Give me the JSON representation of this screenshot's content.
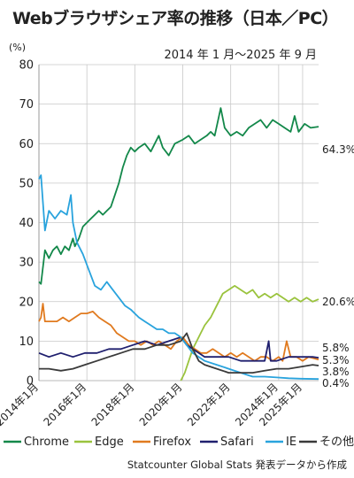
{
  "title": "Webブラウザシェア率の推移（日本／PC）",
  "source": "Statcounter Global Stats 発表データから作成",
  "chart_data": {
    "type": "line",
    "title": "Webブラウザシェア率の推移（日本／PC）",
    "subtitle": "2014 年 1 月～2025 年 9 月",
    "ylabel": "(%)",
    "xlabel": "",
    "ylim": [
      0,
      80
    ],
    "y_ticks": [
      0,
      10,
      20,
      30,
      40,
      50,
      60,
      70,
      80
    ],
    "x_range": [
      "2014-01",
      "2025-09"
    ],
    "x_ticks": [
      {
        "date": "2014-01",
        "label": "2014年1月"
      },
      {
        "date": "2016-01",
        "label": "2016年1月"
      },
      {
        "date": "2018-01",
        "label": "2018年1月"
      },
      {
        "date": "2020-01",
        "label": "2020年1月"
      },
      {
        "date": "2022-01",
        "label": "2022年1月"
      },
      {
        "date": "2024-01",
        "label": "2024年1月"
      },
      {
        "date": "2025-01",
        "label": "2025年1月"
      }
    ],
    "grid": true,
    "legend_position": "bottom",
    "series": [
      {
        "name": "Chrome",
        "color": "#13884a",
        "end_label": "64.3%",
        "points": [
          [
            "2014-01",
            25
          ],
          [
            "2014-02",
            24.5
          ],
          [
            "2014-04",
            33
          ],
          [
            "2014-06",
            31
          ],
          [
            "2014-08",
            33
          ],
          [
            "2014-10",
            34
          ],
          [
            "2014-12",
            32
          ],
          [
            "2015-02",
            34
          ],
          [
            "2015-04",
            33
          ],
          [
            "2015-06",
            36
          ],
          [
            "2015-07",
            34
          ],
          [
            "2015-09",
            36
          ],
          [
            "2015-11",
            39
          ],
          [
            "2016-01",
            40
          ],
          [
            "2016-03",
            41
          ],
          [
            "2016-05",
            42
          ],
          [
            "2016-07",
            43
          ],
          [
            "2016-09",
            42
          ],
          [
            "2016-11",
            43
          ],
          [
            "2017-01",
            44
          ],
          [
            "2017-03",
            47
          ],
          [
            "2017-05",
            50
          ],
          [
            "2017-07",
            54
          ],
          [
            "2017-09",
            57
          ],
          [
            "2017-11",
            59
          ],
          [
            "2018-01",
            58
          ],
          [
            "2018-03",
            59
          ],
          [
            "2018-06",
            60
          ],
          [
            "2018-09",
            58
          ],
          [
            "2019-01",
            62
          ],
          [
            "2019-03",
            59
          ],
          [
            "2019-06",
            57
          ],
          [
            "2019-09",
            60
          ],
          [
            "2020-01",
            61
          ],
          [
            "2020-04",
            62
          ],
          [
            "2020-07",
            60
          ],
          [
            "2020-10",
            61
          ],
          [
            "2021-01",
            62
          ],
          [
            "2021-03",
            63
          ],
          [
            "2021-05",
            62
          ],
          [
            "2021-08",
            69
          ],
          [
            "2021-10",
            64
          ],
          [
            "2022-01",
            62
          ],
          [
            "2022-04",
            63
          ],
          [
            "2022-07",
            62
          ],
          [
            "2022-10",
            64
          ],
          [
            "2023-01",
            65
          ],
          [
            "2023-04",
            66
          ],
          [
            "2023-07",
            64
          ],
          [
            "2023-10",
            66
          ],
          [
            "2024-01",
            65
          ],
          [
            "2024-04",
            64
          ],
          [
            "2024-07",
            63
          ],
          [
            "2024-09",
            67
          ],
          [
            "2024-11",
            63
          ],
          [
            "2025-02",
            65
          ],
          [
            "2025-05",
            64
          ],
          [
            "2025-09",
            64.3
          ]
        ]
      },
      {
        "name": "Edge",
        "color": "#9ac33d",
        "end_label": "20.6%",
        "points": [
          [
            "2019-12",
            0
          ],
          [
            "2020-02",
            2
          ],
          [
            "2020-04",
            5
          ],
          [
            "2020-06",
            8
          ],
          [
            "2020-08",
            10
          ],
          [
            "2020-10",
            12
          ],
          [
            "2020-12",
            14
          ],
          [
            "2021-03",
            16
          ],
          [
            "2021-06",
            19
          ],
          [
            "2021-09",
            22
          ],
          [
            "2021-12",
            23
          ],
          [
            "2022-03",
            24
          ],
          [
            "2022-06",
            23
          ],
          [
            "2022-09",
            22
          ],
          [
            "2022-12",
            23
          ],
          [
            "2023-03",
            21
          ],
          [
            "2023-06",
            22
          ],
          [
            "2023-09",
            21
          ],
          [
            "2023-12",
            22
          ],
          [
            "2024-03",
            21
          ],
          [
            "2024-06",
            20
          ],
          [
            "2024-09",
            21
          ],
          [
            "2024-12",
            20
          ],
          [
            "2025-03",
            21
          ],
          [
            "2025-06",
            20
          ],
          [
            "2025-09",
            20.6
          ]
        ]
      },
      {
        "name": "Firefox",
        "color": "#e07a1f",
        "end_label": "5.3%",
        "points": [
          [
            "2014-01",
            15
          ],
          [
            "2014-02",
            16
          ],
          [
            "2014-03",
            19.5
          ],
          [
            "2014-04",
            15
          ],
          [
            "2014-07",
            15
          ],
          [
            "2014-10",
            15
          ],
          [
            "2015-01",
            16
          ],
          [
            "2015-04",
            15
          ],
          [
            "2015-07",
            16
          ],
          [
            "2015-10",
            17
          ],
          [
            "2016-01",
            17
          ],
          [
            "2016-04",
            17.5
          ],
          [
            "2016-07",
            16
          ],
          [
            "2016-10",
            15
          ],
          [
            "2017-01",
            14
          ],
          [
            "2017-04",
            12
          ],
          [
            "2017-07",
            11
          ],
          [
            "2017-10",
            10
          ],
          [
            "2018-01",
            10
          ],
          [
            "2018-04",
            9
          ],
          [
            "2018-07",
            10
          ],
          [
            "2018-10",
            9
          ],
          [
            "2019-01",
            10
          ],
          [
            "2019-04",
            9
          ],
          [
            "2019-07",
            8
          ],
          [
            "2019-10",
            10
          ],
          [
            "2020-01",
            11
          ],
          [
            "2020-04",
            9
          ],
          [
            "2020-07",
            8
          ],
          [
            "2020-10",
            7
          ],
          [
            "2021-01",
            7
          ],
          [
            "2021-04",
            8
          ],
          [
            "2021-07",
            7
          ],
          [
            "2021-10",
            6
          ],
          [
            "2022-01",
            7
          ],
          [
            "2022-04",
            6
          ],
          [
            "2022-07",
            7
          ],
          [
            "2022-10",
            6
          ],
          [
            "2023-01",
            5
          ],
          [
            "2023-04",
            6
          ],
          [
            "2023-07",
            6
          ],
          [
            "2023-10",
            5
          ],
          [
            "2024-01",
            6
          ],
          [
            "2024-03",
            5
          ],
          [
            "2024-05",
            10
          ],
          [
            "2024-07",
            6
          ],
          [
            "2024-10",
            6
          ],
          [
            "2025-01",
            5
          ],
          [
            "2025-04",
            6
          ],
          [
            "2025-09",
            5.3
          ]
        ]
      },
      {
        "name": "Safari",
        "color": "#1f1f6e",
        "end_label": "5.8%",
        "points": [
          [
            "2014-01",
            7
          ],
          [
            "2014-06",
            6
          ],
          [
            "2014-12",
            7
          ],
          [
            "2015-06",
            6
          ],
          [
            "2015-12",
            7
          ],
          [
            "2016-06",
            7
          ],
          [
            "2016-12",
            8
          ],
          [
            "2017-06",
            8
          ],
          [
            "2017-12",
            9
          ],
          [
            "2018-06",
            10
          ],
          [
            "2018-12",
            9
          ],
          [
            "2019-06",
            10
          ],
          [
            "2019-12",
            11
          ],
          [
            "2020-03",
            9
          ],
          [
            "2020-06",
            8
          ],
          [
            "2020-09",
            7
          ],
          [
            "2020-12",
            6
          ],
          [
            "2021-06",
            6
          ],
          [
            "2021-12",
            6
          ],
          [
            "2022-06",
            5
          ],
          [
            "2022-12",
            5
          ],
          [
            "2023-06",
            5
          ],
          [
            "2023-08",
            10
          ],
          [
            "2023-09",
            5
          ],
          [
            "2023-12",
            5
          ],
          [
            "2024-06",
            6
          ],
          [
            "2024-12",
            6
          ],
          [
            "2025-06",
            6
          ],
          [
            "2025-09",
            5.8
          ]
        ]
      },
      {
        "name": "IE",
        "color": "#29a3dd",
        "end_label": "0.4%",
        "points": [
          [
            "2014-01",
            51
          ],
          [
            "2014-02",
            52
          ],
          [
            "2014-04",
            38
          ],
          [
            "2014-06",
            43
          ],
          [
            "2014-09",
            41
          ],
          [
            "2014-12",
            43
          ],
          [
            "2015-03",
            42
          ],
          [
            "2015-05",
            47
          ],
          [
            "2015-06",
            40
          ],
          [
            "2015-08",
            35
          ],
          [
            "2015-11",
            32
          ],
          [
            "2016-02",
            28
          ],
          [
            "2016-05",
            24
          ],
          [
            "2016-08",
            23
          ],
          [
            "2016-11",
            25
          ],
          [
            "2017-02",
            23
          ],
          [
            "2017-05",
            21
          ],
          [
            "2017-08",
            19
          ],
          [
            "2017-11",
            18
          ],
          [
            "2018-03",
            16
          ],
          [
            "2018-06",
            15
          ],
          [
            "2018-09",
            14
          ],
          [
            "2018-12",
            13
          ],
          [
            "2019-03",
            13
          ],
          [
            "2019-06",
            12
          ],
          [
            "2019-09",
            12
          ],
          [
            "2019-12",
            11
          ],
          [
            "2020-03",
            9
          ],
          [
            "2020-06",
            7
          ],
          [
            "2020-09",
            6
          ],
          [
            "2020-12",
            5
          ],
          [
            "2021-06",
            4
          ],
          [
            "2021-12",
            3
          ],
          [
            "2022-06",
            2
          ],
          [
            "2022-12",
            1
          ],
          [
            "2023-06",
            1
          ],
          [
            "2023-12",
            0.8
          ],
          [
            "2024-06",
            0.6
          ],
          [
            "2024-12",
            0.5
          ],
          [
            "2025-09",
            0.4
          ]
        ]
      },
      {
        "name": "その他",
        "color": "#3a3a3a",
        "end_label": "3.8%",
        "points": [
          [
            "2014-01",
            3
          ],
          [
            "2014-06",
            3
          ],
          [
            "2014-12",
            2.5
          ],
          [
            "2015-06",
            3
          ],
          [
            "2015-12",
            4
          ],
          [
            "2016-06",
            5
          ],
          [
            "2016-12",
            6
          ],
          [
            "2017-06",
            7
          ],
          [
            "2017-12",
            8
          ],
          [
            "2018-06",
            8
          ],
          [
            "2018-12",
            9
          ],
          [
            "2019-06",
            9
          ],
          [
            "2019-12",
            10
          ],
          [
            "2020-03",
            12
          ],
          [
            "2020-06",
            8
          ],
          [
            "2020-09",
            5
          ],
          [
            "2020-12",
            4
          ],
          [
            "2021-06",
            3
          ],
          [
            "2021-12",
            2
          ],
          [
            "2022-06",
            2
          ],
          [
            "2022-12",
            2
          ],
          [
            "2023-06",
            2.5
          ],
          [
            "2023-12",
            3
          ],
          [
            "2024-06",
            3
          ],
          [
            "2024-12",
            3.5
          ],
          [
            "2025-06",
            4
          ],
          [
            "2025-09",
            3.8
          ]
        ]
      }
    ]
  }
}
